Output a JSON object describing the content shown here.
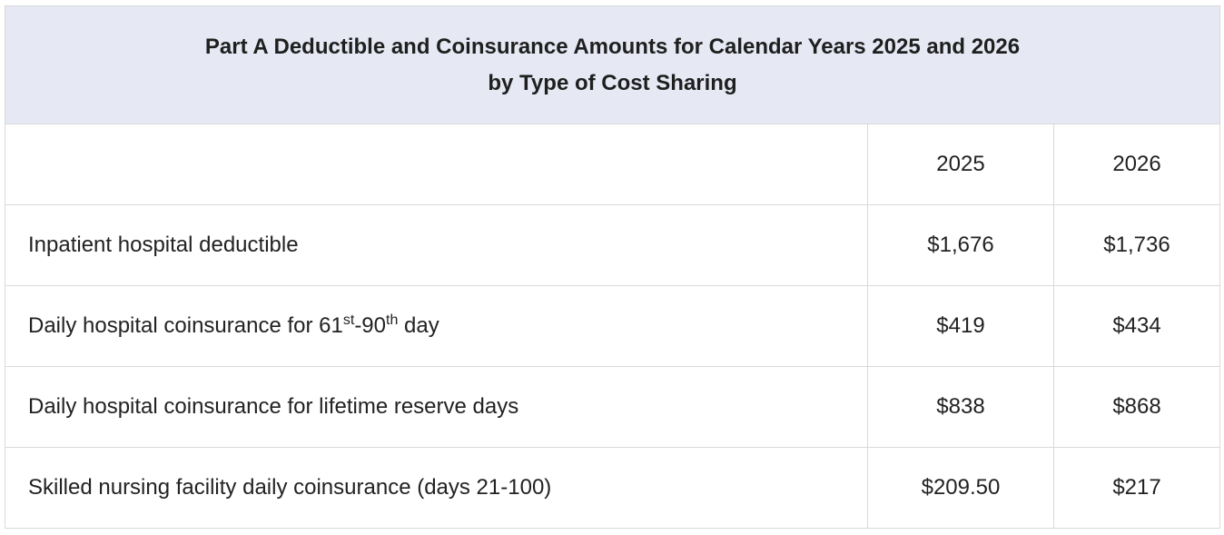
{
  "table": {
    "title_line1": "Part A Deductible and Coinsurance Amounts for Calendar Years 2025 and 2026",
    "title_line2": "by Type of Cost Sharing",
    "header": {
      "label": "",
      "col_2025": "2025",
      "col_2026": "2026"
    },
    "rows": [
      {
        "label": "Inpatient hospital deductible",
        "v2025": "$1,676",
        "v2026": "$1,736"
      },
      {
        "label_part1": "Daily hospital coinsurance for 61",
        "label_sup1": "st",
        "label_part2": "-90",
        "label_sup2": "th",
        "label_part3": " day",
        "v2025": "$419",
        "v2026": "$434"
      },
      {
        "label": "Daily hospital coinsurance for lifetime reserve days",
        "v2025": "$838",
        "v2026": "$868"
      },
      {
        "label": "Skilled nursing facility daily coinsurance (days 21-100)",
        "v2025": "$209.50",
        "v2026": "$217"
      }
    ]
  }
}
